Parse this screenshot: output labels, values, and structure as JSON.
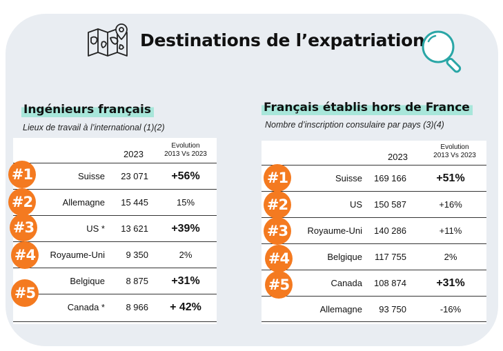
{
  "header": {
    "title": "Destinations de l’expatriation",
    "left_icon": "map-pin-icon",
    "right_icon": "search-icon",
    "accent_color": "#2aa6a6",
    "card_color": "#e9edf2"
  },
  "left": {
    "title": "Ingénieurs français",
    "subtitle": "Lieux de travail à l’international (1)(2)",
    "col_year": "2023",
    "col_evo_line1": "Evolution",
    "col_evo_line2": "2013 Vs 2023",
    "rows": [
      {
        "country": "Suisse",
        "value": "23 071",
        "evo": "+56%",
        "bold": true
      },
      {
        "country": "Allemagne",
        "value": "15 445",
        "evo": "15%",
        "bold": false
      },
      {
        "country": "US *",
        "value": "13 621",
        "evo": "+39%",
        "bold": true
      },
      {
        "country": "Royaume-Uni",
        "value": "9 350",
        "evo": "2%",
        "bold": false
      },
      {
        "country": "Belgique",
        "value": "8 875",
        "evo": "+31%",
        "bold": true
      },
      {
        "country": "Canada *",
        "value": "8 966",
        "evo": "+ 42%",
        "bold": true
      }
    ],
    "badges": [
      "#1",
      "#2",
      "#3",
      "#4",
      "#5"
    ]
  },
  "right": {
    "title": "Français établis hors de France",
    "subtitle": "Nombre d’inscription consulaire par pays (3)(4)",
    "col_year": "2023",
    "col_evo_line1": "Evolution",
    "col_evo_line2": "2013 Vs 2023",
    "rows": [
      {
        "country": "Suisse",
        "value": "169 166",
        "evo": "+51%",
        "bold": true
      },
      {
        "country": "US",
        "value": "150 587",
        "evo": "+16%",
        "bold": false
      },
      {
        "country": "Royaume-Uni",
        "value": "140 286",
        "evo": "+11%",
        "bold": false
      },
      {
        "country": "Belgique",
        "value": "117 755",
        "evo": "2%",
        "bold": false
      },
      {
        "country": "Canada",
        "value": "108 874",
        "evo": "+31%",
        "bold": true
      },
      {
        "country": "Allemagne",
        "value": "93 750",
        "evo": "-16%",
        "bold": false
      }
    ],
    "badges": [
      "#1",
      "#2",
      "#3",
      "#4",
      "#5"
    ]
  },
  "badge_color": "#f47a20"
}
